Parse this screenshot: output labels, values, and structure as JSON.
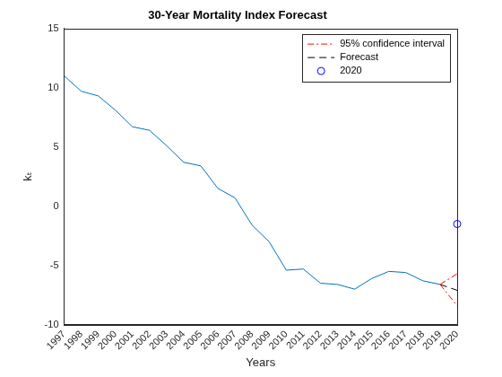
{
  "chart_data": {
    "type": "line",
    "title": "30-Year Mortality Index Forecast",
    "x_label": "Years",
    "y_label": "kₜ",
    "categories": [
      "1997",
      "1998",
      "1999",
      "2000",
      "2001",
      "2002",
      "2003",
      "2004",
      "2005",
      "2006",
      "2007",
      "2008",
      "2009",
      "2010",
      "2011",
      "2012",
      "2013",
      "2014",
      "2015",
      "2016",
      "2017",
      "2018",
      "2019",
      "2020"
    ],
    "series": [
      {
        "color": "#0072bd",
        "line_style": "solid",
        "values": [
          11.0,
          9.7,
          9.3,
          8.1,
          6.7,
          6.4,
          5.1,
          3.7,
          3.4,
          1.5,
          0.7,
          -1.6,
          -3.0,
          -5.4,
          -5.3,
          -6.5,
          -6.6,
          -7.0,
          -6.1,
          -5.5,
          -5.6,
          -6.3,
          -6.6,
          null
        ]
      },
      {
        "name": "95% confidence interval",
        "color": "#ff0000",
        "line_style": "dashdot",
        "values": [
          null,
          null,
          null,
          null,
          null,
          null,
          null,
          null,
          null,
          null,
          null,
          null,
          null,
          null,
          null,
          null,
          null,
          null,
          null,
          null,
          null,
          null,
          -6.6,
          -5.7
        ]
      },
      {
        "color": "#ff0000",
        "line_style": "dashdot",
        "values": [
          null,
          null,
          null,
          null,
          null,
          null,
          null,
          null,
          null,
          null,
          null,
          null,
          null,
          null,
          null,
          null,
          null,
          null,
          null,
          null,
          null,
          null,
          -6.6,
          -8.4
        ]
      },
      {
        "name": "Forecast",
        "color": "#000000",
        "line_style": "dashed",
        "values": [
          null,
          null,
          null,
          null,
          null,
          null,
          null,
          null,
          null,
          null,
          null,
          null,
          null,
          null,
          null,
          null,
          null,
          null,
          null,
          null,
          null,
          null,
          -6.6,
          -7.1
        ]
      },
      {
        "name": "2020",
        "color": "#0000ff",
        "marker": "circle",
        "values": [
          null,
          null,
          null,
          null,
          null,
          null,
          null,
          null,
          null,
          null,
          null,
          null,
          null,
          null,
          null,
          null,
          null,
          null,
          null,
          null,
          null,
          null,
          null,
          -1.5
        ]
      }
    ],
    "ylim": [
      -10,
      15
    ],
    "yticks": [
      -10,
      -5,
      0,
      5,
      10,
      15
    ],
    "grid": false,
    "legend": "upper right"
  }
}
